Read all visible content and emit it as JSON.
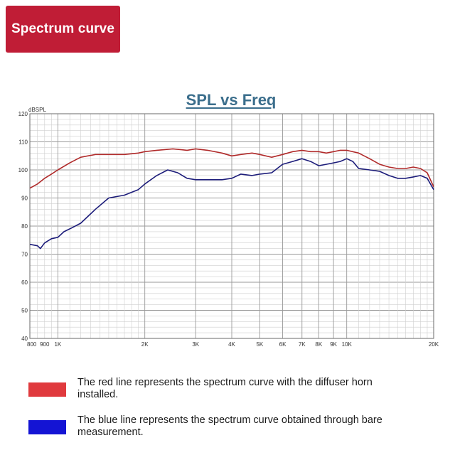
{
  "badge": {
    "label": "Spectrum curve",
    "color": "#c01d36"
  },
  "chart_data": {
    "type": "line",
    "title": "SPL vs Freq",
    "ylabel": "dBSPL",
    "xlabel": "",
    "xscale": "log",
    "xlim": [
      800,
      20000
    ],
    "ylim": [
      40,
      120
    ],
    "grid": true,
    "x_tick_labels": [
      {
        "value": 800,
        "label": "800"
      },
      {
        "value": 900,
        "label": "900"
      },
      {
        "value": 1000,
        "label": "1K"
      },
      {
        "value": 2000,
        "label": "2K"
      },
      {
        "value": 3000,
        "label": "3K"
      },
      {
        "value": 4000,
        "label": "4K"
      },
      {
        "value": 5000,
        "label": "5K"
      },
      {
        "value": 6000,
        "label": "6K"
      },
      {
        "value": 7000,
        "label": "7K"
      },
      {
        "value": 8000,
        "label": "8K"
      },
      {
        "value": 9000,
        "label": "9K"
      },
      {
        "value": 10000,
        "label": "10K"
      },
      {
        "value": 20000,
        "label": "20K"
      }
    ],
    "y_ticks": [
      40,
      50,
      60,
      70,
      80,
      90,
      100,
      110,
      120
    ],
    "series": [
      {
        "color": "#b02a2a",
        "x": [
          800,
          850,
          900,
          950,
          1000,
          1100,
          1200,
          1350,
          1500,
          1700,
          1900,
          2000,
          2200,
          2500,
          2800,
          3000,
          3300,
          3700,
          4000,
          4300,
          4700,
          5000,
          5500,
          6000,
          6500,
          7000,
          7500,
          8000,
          8500,
          9000,
          9500,
          10000,
          11000,
          12000,
          13000,
          14000,
          15000,
          16000,
          17000,
          18000,
          19000,
          20000
        ],
        "y": [
          93.5,
          95,
          97,
          98.5,
          100,
          102.5,
          104.5,
          105.5,
          105.5,
          105.5,
          106,
          106.5,
          107,
          107.5,
          107,
          107.5,
          107,
          106,
          105,
          105.5,
          106,
          105.5,
          104.5,
          105.5,
          106.5,
          107,
          106.5,
          106.5,
          106,
          106.5,
          107,
          107,
          106,
          104,
          102,
          101,
          100.5,
          100.5,
          101,
          100.5,
          99,
          94
        ]
      },
      {
        "color": "#1c1c7a",
        "x": [
          800,
          850,
          870,
          900,
          950,
          1000,
          1050,
          1100,
          1200,
          1350,
          1500,
          1700,
          1900,
          2000,
          2200,
          2400,
          2600,
          2800,
          3000,
          3300,
          3700,
          4000,
          4300,
          4700,
          5000,
          5500,
          6000,
          6500,
          7000,
          7500,
          8000,
          8500,
          9000,
          9500,
          10000,
          10500,
          11000,
          12000,
          13000,
          14000,
          15000,
          16000,
          17000,
          18000,
          19000,
          20000
        ],
        "y": [
          73.5,
          73,
          72,
          74,
          75.5,
          76,
          78,
          79,
          81,
          86,
          90,
          91,
          93,
          95,
          98,
          100,
          99,
          97,
          96.5,
          96.5,
          96.5,
          97,
          98.5,
          98,
          98.5,
          99,
          102,
          103,
          104,
          103,
          101.5,
          102,
          102.5,
          103,
          104,
          103,
          100.5,
          100,
          99.5,
          98,
          97,
          97,
          97.5,
          98,
          97,
          93
        ]
      }
    ]
  },
  "legend": [
    {
      "color": "#e03a3e",
      "text": "The red line represents the spectrum curve with the diffuser horn installed."
    },
    {
      "color": "#1414d4",
      "text": "The blue line represents the spectrum curve obtained through bare measurement."
    }
  ]
}
